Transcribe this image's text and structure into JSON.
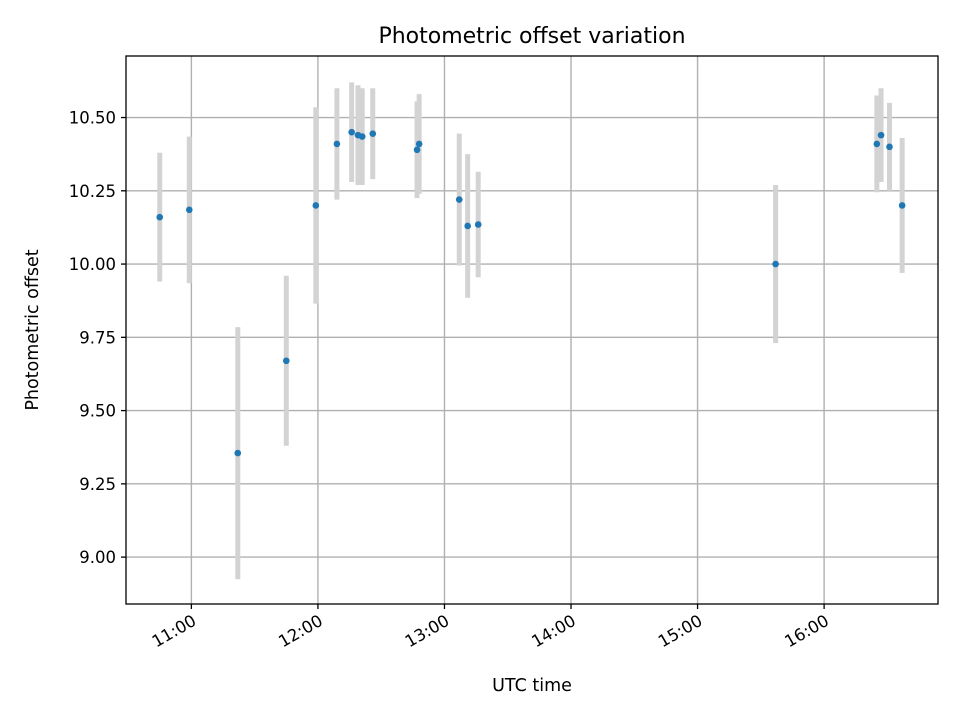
{
  "chart_data": {
    "type": "scatter",
    "title": "Photometric offset variation",
    "xlabel": "UTC time",
    "ylabel": "Photometric offset",
    "x_ticks": [
      "11:00",
      "12:00",
      "13:00",
      "14:00",
      "15:00",
      "16:00"
    ],
    "y_ticks": [
      "9.00",
      "9.25",
      "9.50",
      "9.75",
      "10.00",
      "10.25",
      "10.50"
    ],
    "xlim": [
      "10:29",
      "16:54"
    ],
    "ylim": [
      8.84,
      10.71
    ],
    "grid": true,
    "colors": {
      "points": "#1f77b4",
      "errorbars": "#d3d3d3"
    },
    "series": [
      {
        "points": [
          {
            "x": "10:45",
            "y": 10.16,
            "err": 0.22
          },
          {
            "x": "10:59",
            "y": 10.185,
            "err": 0.25
          },
          {
            "x": "11:22",
            "y": 9.355,
            "err": 0.43
          },
          {
            "x": "11:45",
            "y": 9.67,
            "err": 0.29
          },
          {
            "x": "11:59",
            "y": 10.2,
            "err": 0.335
          },
          {
            "x": "12:09",
            "y": 10.41,
            "err": 0.19
          },
          {
            "x": "12:16",
            "y": 10.45,
            "err": 0.17
          },
          {
            "x": "12:19",
            "y": 10.44,
            "err": 0.17
          },
          {
            "x": "12:21",
            "y": 10.435,
            "err": 0.165
          },
          {
            "x": "12:26",
            "y": 10.445,
            "err": 0.155
          },
          {
            "x": "12:47",
            "y": 10.39,
            "err": 0.165
          },
          {
            "x": "12:48",
            "y": 10.41,
            "err": 0.17
          },
          {
            "x": "13:07",
            "y": 10.22,
            "err": 0.225
          },
          {
            "x": "13:11",
            "y": 10.13,
            "err": 0.245
          },
          {
            "x": "13:16",
            "y": 10.135,
            "err": 0.18
          },
          {
            "x": "15:37",
            "y": 10.0,
            "err": 0.27
          },
          {
            "x": "16:25",
            "y": 10.41,
            "err": 0.165
          },
          {
            "x": "16:27",
            "y": 10.44,
            "err": 0.16
          },
          {
            "x": "16:31",
            "y": 10.4,
            "err": 0.15
          },
          {
            "x": "16:37",
            "y": 10.2,
            "err": 0.23
          }
        ]
      }
    ]
  }
}
